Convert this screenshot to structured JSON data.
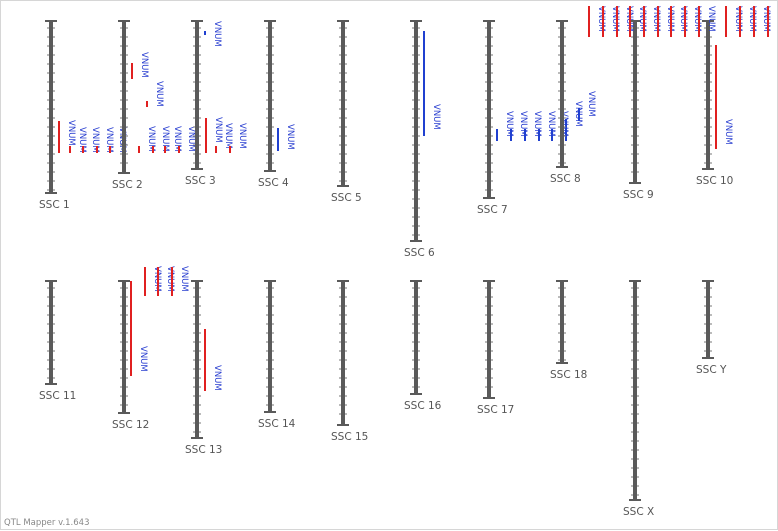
{
  "footer": {
    "version": "QTL Mapper v.1.643"
  },
  "qtl_label": "VNUM",
  "colors": {
    "chromosome": "#5a5a5a",
    "tick": "#777777",
    "qtl_red": "#e02020",
    "qtl_blue": "#2040d0",
    "label": "#555555"
  },
  "chromosomes": [
    {
      "id": "SSC1",
      "label": "SSC 1"
    },
    {
      "id": "SSC2",
      "label": "SSC 2"
    },
    {
      "id": "SSC3",
      "label": "SSC 3"
    },
    {
      "id": "SSC4",
      "label": "SSC 4"
    },
    {
      "id": "SSC5",
      "label": "SSC 5"
    },
    {
      "id": "SSC6",
      "label": "SSC 6"
    },
    {
      "id": "SSC7",
      "label": "SSC 7"
    },
    {
      "id": "SSC8",
      "label": "SSC 8"
    },
    {
      "id": "SSC9",
      "label": "SSC 9"
    },
    {
      "id": "SSC10",
      "label": "SSC 10"
    },
    {
      "id": "SSC11",
      "label": "SSC 11"
    },
    {
      "id": "SSC12",
      "label": "SSC 12"
    },
    {
      "id": "SSC13",
      "label": "SSC 13"
    },
    {
      "id": "SSC14",
      "label": "SSC 14"
    },
    {
      "id": "SSC15",
      "label": "SSC 15"
    },
    {
      "id": "SSC16",
      "label": "SSC 16"
    },
    {
      "id": "SSC17",
      "label": "SSC 17"
    },
    {
      "id": "SSC18",
      "label": "SSC 18"
    },
    {
      "id": "SSCX",
      "label": "SSC X"
    },
    {
      "id": "SSCY",
      "label": "SSC Y"
    }
  ]
}
